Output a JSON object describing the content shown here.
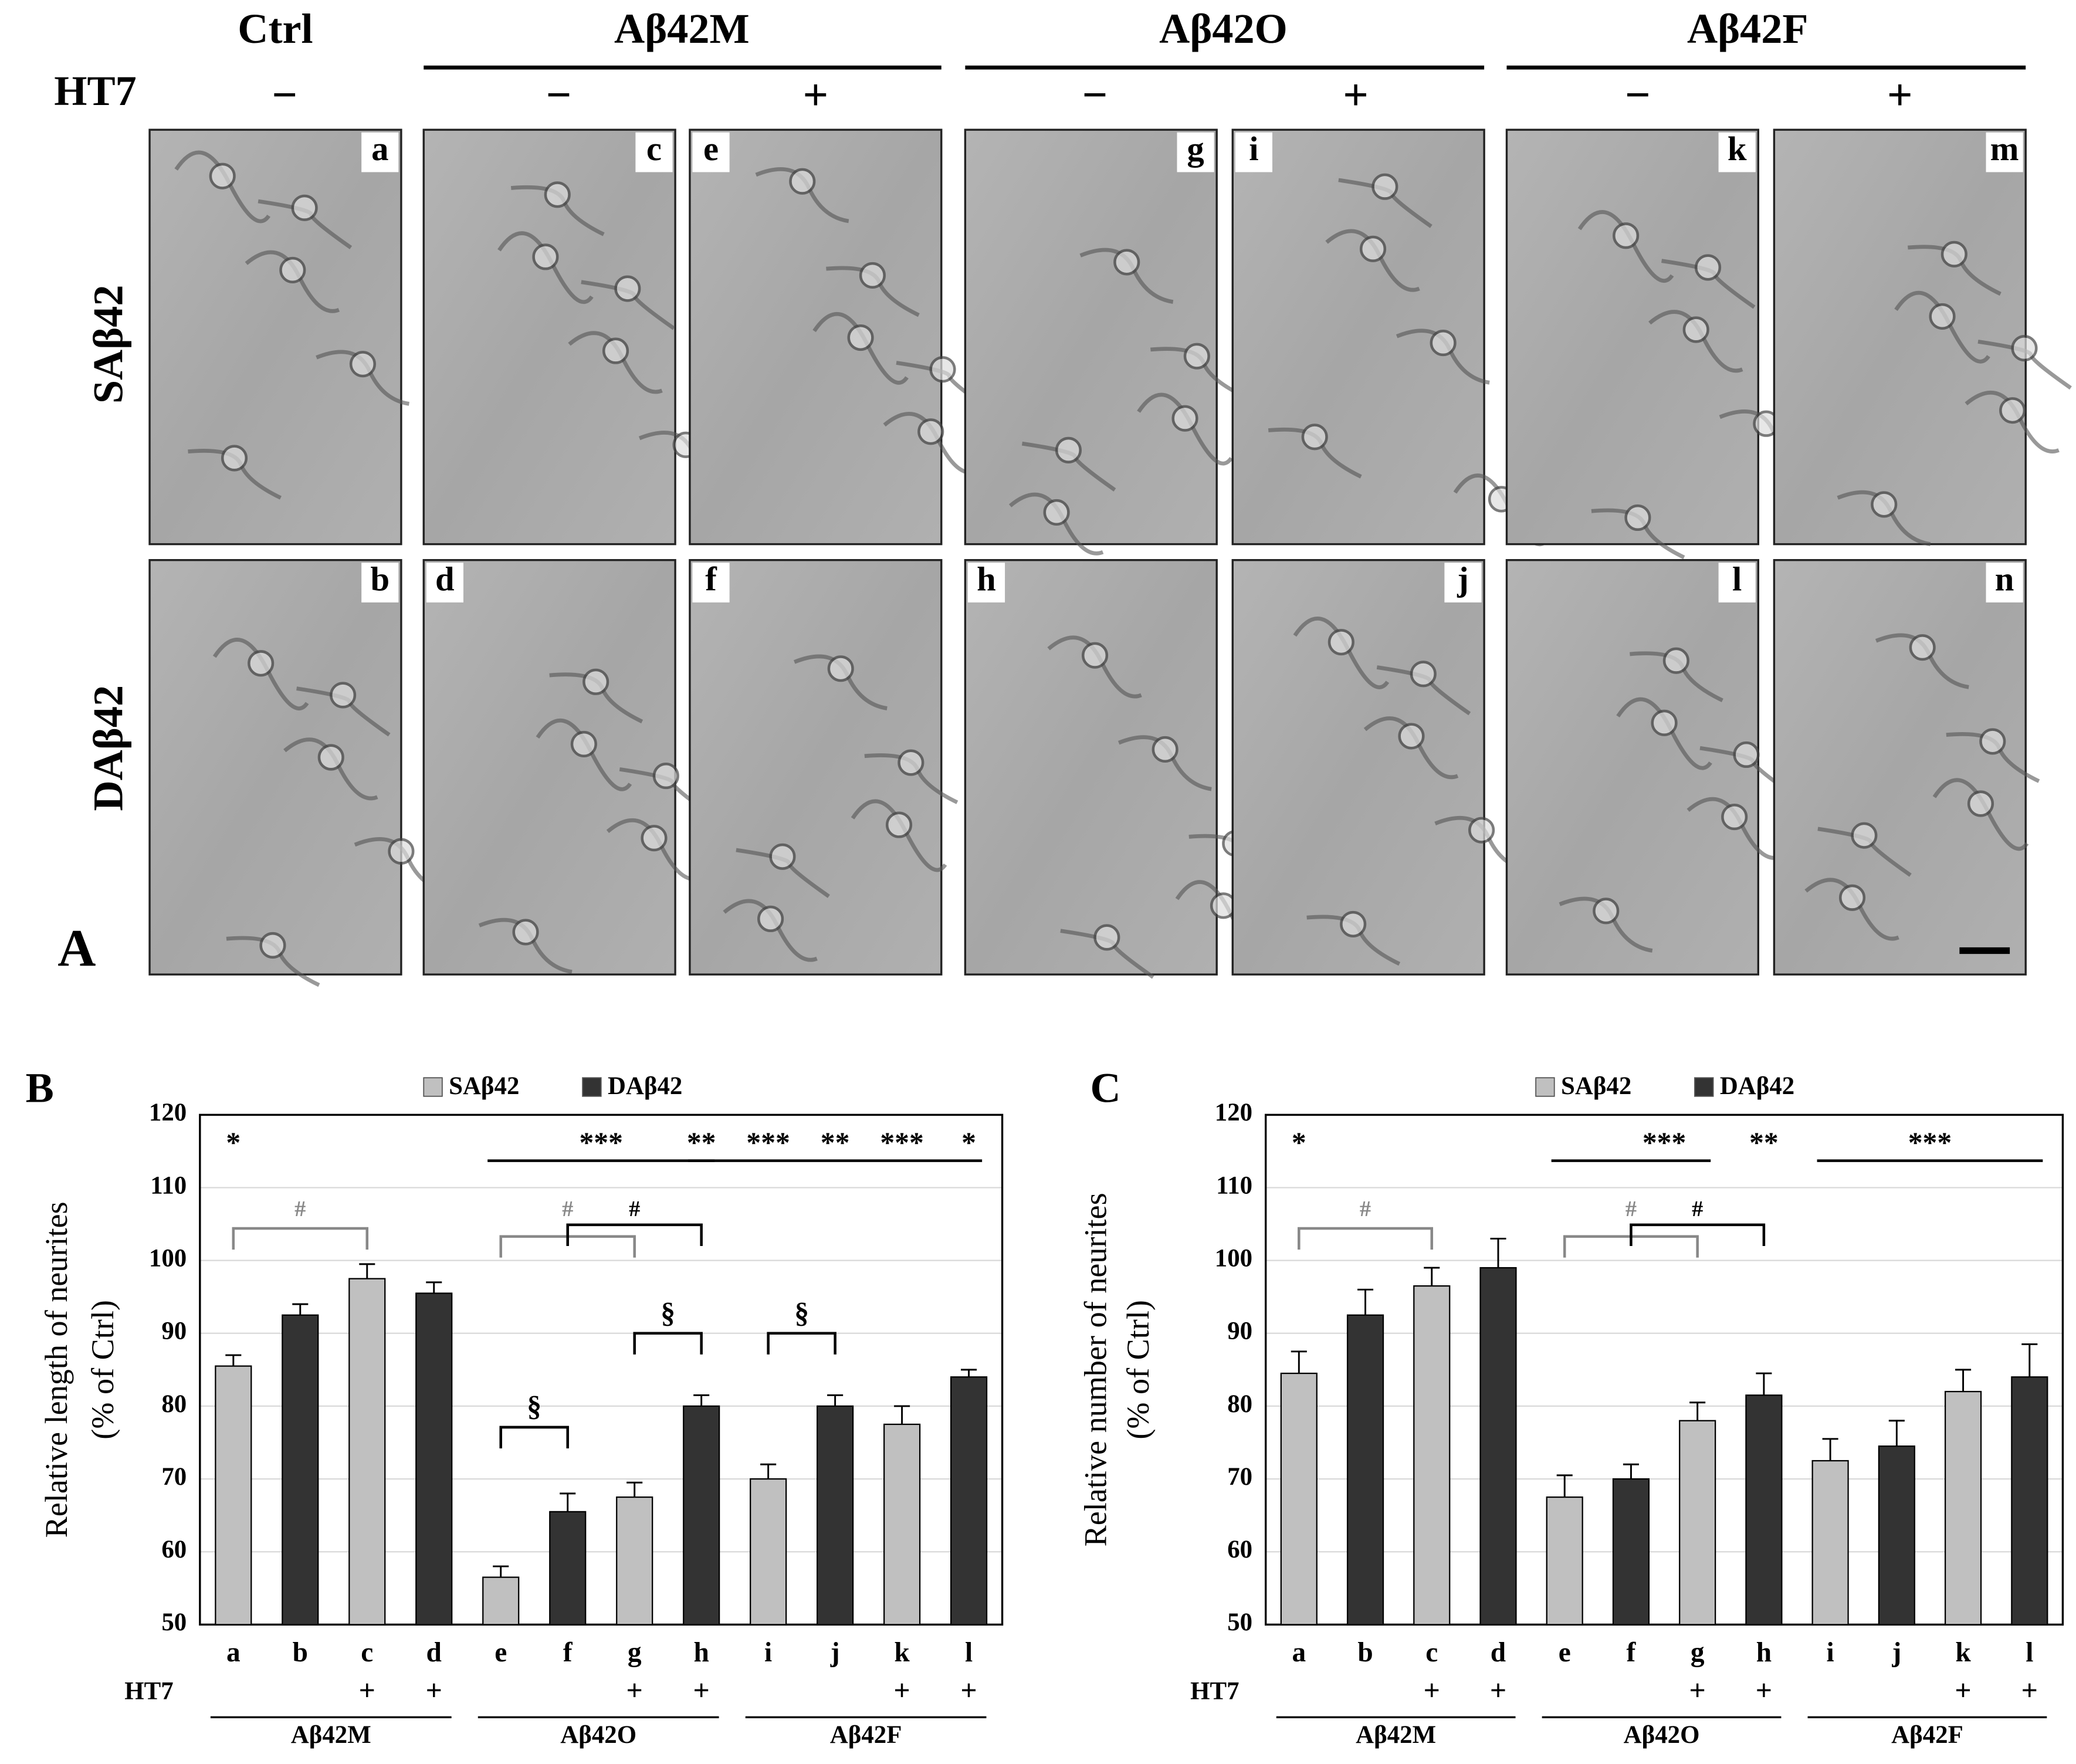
{
  "figure_a": {
    "label": "A",
    "groups": [
      "Ctrl",
      "Aβ42M",
      "Aβ42O",
      "Aβ42F"
    ],
    "ht7_label": "HT7",
    "ht7": [
      "−",
      "−",
      "+",
      "−",
      "+",
      "−",
      "+"
    ],
    "rows": [
      "SAβ42",
      "DAβ42"
    ],
    "panels": [
      [
        "a",
        "c",
        "e",
        "g",
        "i",
        "k",
        "m"
      ],
      [
        "b",
        "d",
        "f",
        "h",
        "j",
        "l",
        "n"
      ]
    ]
  },
  "chart_data": [
    {
      "type": "bar",
      "label": "B",
      "ylabel": [
        "Relative length of neurites",
        "(% of Ctrl)"
      ],
      "categories": [
        "a",
        "b",
        "c",
        "d",
        "e",
        "f",
        "g",
        "h",
        "i",
        "j",
        "k",
        "l"
      ],
      "ht7_label": "HT7",
      "ht7": [
        null,
        null,
        "+",
        "+",
        null,
        null,
        "+",
        "+",
        null,
        null,
        "+",
        "+"
      ],
      "groups": [
        "Aβ42M",
        "Aβ42O",
        "Aβ42F"
      ],
      "series": [
        {
          "name": "SAβ42",
          "color": "#c0c0c0",
          "values": [
            85.5,
            null,
            97.5,
            null,
            56.5,
            null,
            67.5,
            null,
            70,
            null,
            77.5,
            null
          ],
          "errors": [
            1.5,
            null,
            2,
            null,
            1.5,
            null,
            2,
            null,
            2,
            null,
            2.5,
            null
          ]
        },
        {
          "name": "DAβ42",
          "color": "#333333",
          "values": [
            null,
            92.5,
            null,
            95.5,
            null,
            65.5,
            null,
            80,
            null,
            80,
            null,
            84
          ],
          "errors": [
            null,
            1.5,
            null,
            1.5,
            null,
            2.5,
            null,
            1.5,
            null,
            1.5,
            null,
            1
          ]
        }
      ],
      "ylim": [
        50,
        120
      ],
      "yticks": [
        50,
        60,
        70,
        80,
        90,
        100,
        110,
        120
      ],
      "grid": true,
      "annotations": [
        {
          "text": "*",
          "color": "#000"
        },
        {
          "text": "***",
          "color": "#000"
        },
        {
          "text": "**",
          "color": "#000"
        },
        {
          "text": "***",
          "color": "#000"
        },
        {
          "text": "**",
          "color": "#000"
        },
        {
          "text": "***",
          "color": "#000"
        },
        {
          "text": "*",
          "color": "#000"
        },
        {
          "text": "#",
          "color": "#888"
        },
        {
          "text": "#",
          "color": "#888"
        },
        {
          "text": "#",
          "color": "#000"
        },
        {
          "text": "§",
          "color": "#000"
        },
        {
          "text": "§",
          "color": "#000"
        },
        {
          "text": "§",
          "color": "#000"
        }
      ]
    },
    {
      "type": "bar",
      "label": "C",
      "ylabel": [
        "Relative number of neurites",
        "(% of Ctrl)"
      ],
      "categories": [
        "a",
        "b",
        "c",
        "d",
        "e",
        "f",
        "g",
        "h",
        "i",
        "j",
        "k",
        "l"
      ],
      "ht7_label": "HT7",
      "ht7": [
        null,
        null,
        "+",
        "+",
        null,
        null,
        "+",
        "+",
        null,
        null,
        "+",
        "+"
      ],
      "groups": [
        "Aβ42M",
        "Aβ42O",
        "Aβ42F"
      ],
      "series": [
        {
          "name": "SAβ42",
          "color": "#c0c0c0",
          "values": [
            84.5,
            null,
            96.5,
            null,
            67.5,
            null,
            78,
            null,
            72.5,
            null,
            82,
            null
          ],
          "errors": [
            3,
            null,
            2.5,
            null,
            3,
            null,
            2.5,
            null,
            3,
            null,
            3,
            null
          ]
        },
        {
          "name": "DAβ42",
          "color": "#333333",
          "values": [
            null,
            92.5,
            null,
            99,
            null,
            70,
            null,
            81.5,
            null,
            74.5,
            null,
            84
          ],
          "errors": [
            null,
            3.5,
            null,
            4,
            null,
            2,
            null,
            3,
            null,
            3.5,
            null,
            4.5
          ]
        }
      ],
      "ylim": [
        50,
        120
      ],
      "yticks": [
        50,
        60,
        70,
        80,
        90,
        100,
        110,
        120
      ],
      "grid": true,
      "annotations": [
        {
          "text": "*",
          "color": "#000"
        },
        {
          "text": "***",
          "color": "#000"
        },
        {
          "text": "**",
          "color": "#000"
        },
        {
          "text": "***",
          "color": "#000"
        },
        {
          "text": "#",
          "color": "#888"
        },
        {
          "text": "#",
          "color": "#888"
        },
        {
          "text": "#",
          "color": "#000"
        }
      ]
    }
  ]
}
